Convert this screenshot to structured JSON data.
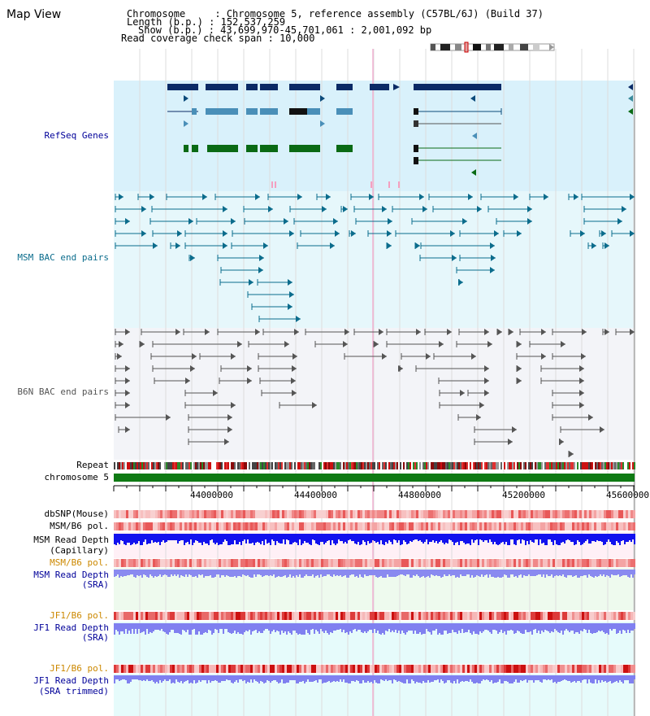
{
  "title": "Map View",
  "info": {
    "chromosome": "Chromosome     : Chromosome 5, reference assembly (C57BL/6J) (Build 37)",
    "length": "Length (b.p.) : 152,537,259",
    "show": "Show (b.p.) : 43,699,970-45,701,061 : 2,001,092 bp",
    "coverage": "Read coverage check span : 10,000"
  },
  "axis": {
    "ticks": [
      "44000000",
      "44400000",
      "44800000",
      "45200000",
      "45600000"
    ]
  },
  "tracks": {
    "refseq": "RefSeq Genes",
    "msm_bac": "MSM BAC end pairs",
    "b6n_bac": "B6N BAC end pairs",
    "repeat": "Repeat",
    "chromosome": "chromosome 5",
    "dbsnp": "dbSNP(Mouse)",
    "msm_b6_pol": "MSM/B6 pol.",
    "msm_read_depth_1": "MSM Read Depth",
    "msm_read_depth_1b": "(Capillary)",
    "msm_b6_pol_2": "MSM/B6 pol.",
    "msm_read_depth_2": "MSM Read Depth",
    "msm_read_depth_2b": "(SRA)",
    "jf1_b6_pol": "JF1/B6 pol.",
    "jf1_read_depth": "JF1 Read Depth",
    "jf1_read_depth_b": "(SRA)",
    "jf1_b6_pol_2": "JF1/B6 pol.",
    "jf1_read_depth_2": "JF1 Read Depth",
    "jf1_read_depth_2b": "(SRA trimmed)"
  },
  "colors": {
    "refseq_bg": "#d9f1fb",
    "msm_bg": "#e6f7fb",
    "b6n_bg": "#f3f4f8",
    "navy": "#0b2a66",
    "steel": "#4a8fb8",
    "green": "#0a6a14",
    "msm_line": "#0b6c8c",
    "b6n_line": "#555555",
    "label_blue": "#000099",
    "label_orange": "#cc8800",
    "depth_blue": "#1010ee",
    "depth_light": "#8080f0",
    "chrom_green": "#0f7a14"
  }
}
